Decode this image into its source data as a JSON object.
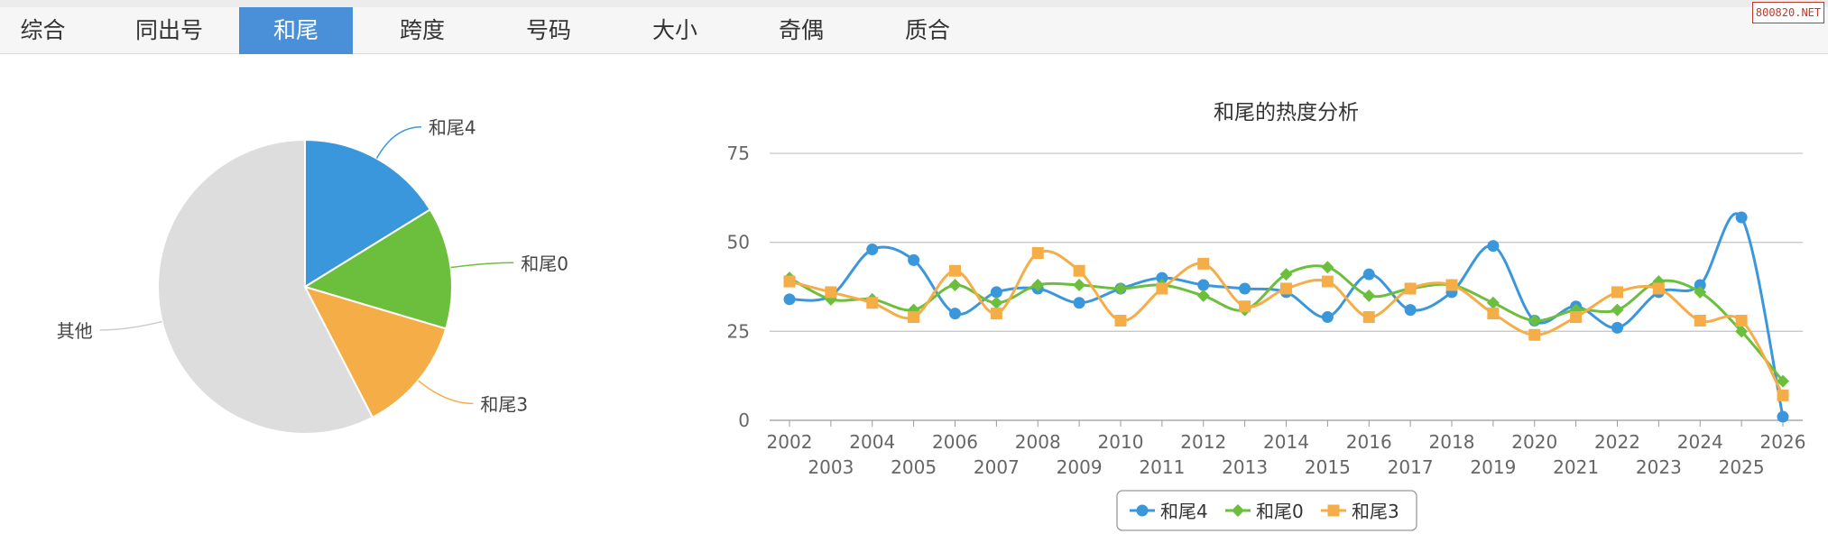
{
  "tabs": [
    {
      "label": "综合",
      "active": false
    },
    {
      "label": "同出号",
      "active": false
    },
    {
      "label": "和尾",
      "active": true
    },
    {
      "label": "跨度",
      "active": false
    },
    {
      "label": "号码",
      "active": false
    },
    {
      "label": "大小",
      "active": false
    },
    {
      "label": "奇偶",
      "active": false
    },
    {
      "label": "质合",
      "active": false
    }
  ],
  "watermark": "800820.NET",
  "colors": {
    "s4": "#3b97dc",
    "s0": "#6cbf3c",
    "s3": "#f5ad48",
    "other": "#dddddd",
    "axis": "#999999",
    "grid": "#c8c8c8",
    "title": "#333333"
  },
  "chart_data": [
    {
      "type": "pie",
      "slices": [
        {
          "name": "和尾4",
          "value": 16.2
        },
        {
          "name": "和尾0",
          "value": 13.4
        },
        {
          "name": "和尾3",
          "value": 12.8
        },
        {
          "name": "其他",
          "value": 57.6
        }
      ]
    },
    {
      "type": "line",
      "title": "和尾的热度分析",
      "x": [
        "2002",
        "2003",
        "2004",
        "2005",
        "2006",
        "2007",
        "2008",
        "2009",
        "2010",
        "2011",
        "2012",
        "2013",
        "2014",
        "2015",
        "2016",
        "2017",
        "2018",
        "2019",
        "2020",
        "2021",
        "2022",
        "2023",
        "2024",
        "2025",
        "2026"
      ],
      "ylim": [
        0,
        75
      ],
      "yticks": [
        0,
        25,
        50,
        75
      ],
      "grid": true,
      "legend_position": "bottom-center",
      "series": [
        {
          "name": "和尾4",
          "marker": "circle",
          "values": [
            34,
            35,
            48,
            45,
            30,
            36,
            37,
            33,
            37,
            40,
            38,
            37,
            36,
            29,
            41,
            31,
            36,
            49,
            28,
            32,
            26,
            36,
            38,
            57,
            1
          ]
        },
        {
          "name": "和尾0",
          "marker": "diamond",
          "values": [
            40,
            34,
            34,
            31,
            38,
            33,
            38,
            38,
            37,
            38,
            35,
            31,
            41,
            43,
            35,
            37,
            38,
            33,
            28,
            31,
            31,
            39,
            36,
            25,
            11
          ]
        },
        {
          "name": "和尾3",
          "marker": "square",
          "values": [
            39,
            36,
            33,
            29,
            42,
            30,
            47,
            42,
            28,
            37,
            44,
            32,
            37,
            39,
            29,
            37,
            38,
            30,
            24,
            29,
            36,
            37,
            28,
            28,
            7
          ]
        }
      ]
    }
  ]
}
